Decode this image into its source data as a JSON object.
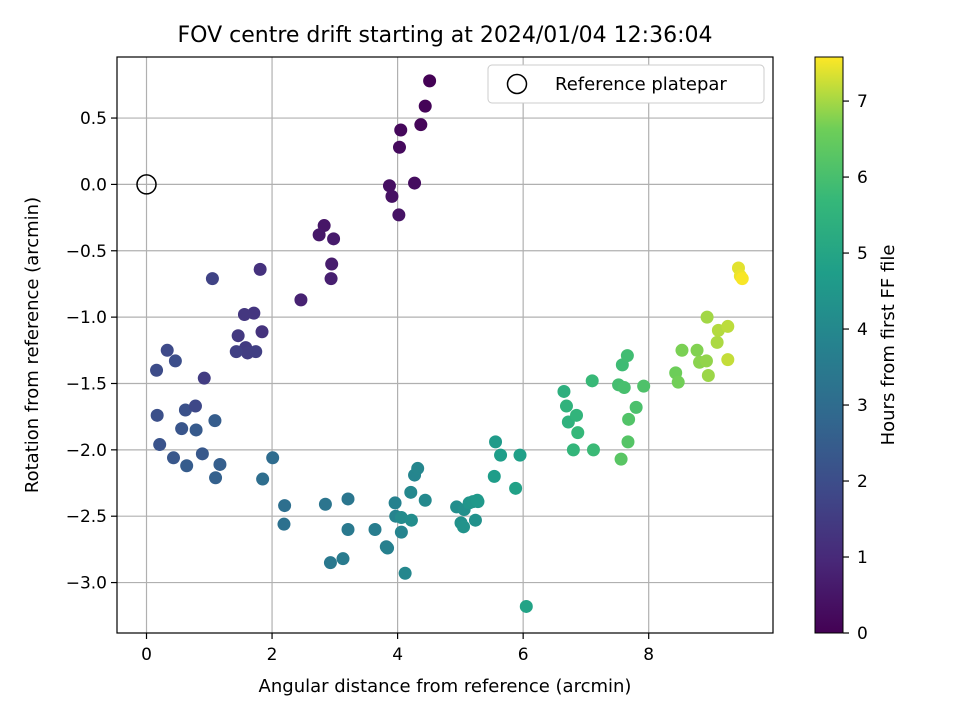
{
  "chart_data": {
    "type": "scatter",
    "title": "FOV centre drift starting at 2024/01/04 12:36:04",
    "xlabel": "Angular distance from reference (arcmin)",
    "ylabel": "Rotation from reference (arcmin)",
    "xlim": [
      -0.47,
      9.98
    ],
    "ylim": [
      -3.38,
      0.96
    ],
    "xticks": [
      0,
      2,
      4,
      6,
      8
    ],
    "yticks": [
      0.5,
      0.0,
      -0.5,
      -1.0,
      -1.5,
      -2.0,
      -2.5,
      -3.0
    ],
    "ytick_labels": [
      "0.5",
      "0.0",
      "−0.5",
      "−1.0",
      "−1.5",
      "−2.0",
      "−2.5",
      "−3.0"
    ],
    "grid": true,
    "legend": {
      "placement": "top-right",
      "entries": [
        "Reference platepar"
      ]
    },
    "reference_point": {
      "x": 0.0,
      "y": 0.0,
      "label": "Reference platepar",
      "marker": "open-circle"
    },
    "colorbar": {
      "label": "Hours from first FF file",
      "colormap": "viridis",
      "range": [
        0,
        7.58
      ],
      "ticks": [
        0,
        1,
        2,
        3,
        4,
        5,
        6,
        7
      ]
    },
    "series": [
      {
        "name": "",
        "x": [
          4.51,
          4.44,
          4.37,
          4.05,
          4.03,
          4.27,
          3.87,
          3.91,
          4.02,
          2.83,
          2.75,
          2.98,
          2.95,
          2.94,
          2.46,
          1.81,
          1.84,
          1.71,
          1.56,
          1.46,
          1.58,
          1.61,
          1.74,
          1.43,
          1.05,
          0.33,
          0.16,
          0.46,
          0.92,
          0.17,
          0.62,
          0.21,
          0.56,
          0.78,
          0.43,
          0.89,
          0.79,
          0.64,
          1.09,
          1.17,
          1.1,
          2.01,
          1.85,
          2.2,
          2.19,
          2.85,
          3.21,
          2.93,
          3.21,
          3.13,
          3.64,
          3.82,
          3.84,
          3.96,
          3.97,
          4.27,
          4.32,
          4.21,
          4.44,
          4.06,
          4.22,
          4.06,
          4.12,
          4.94,
          5.06,
          5.01,
          5.05,
          5.14,
          5.2,
          5.28,
          5.27,
          5.24,
          5.56,
          5.54,
          5.64,
          5.95,
          5.88,
          6.05,
          6.65,
          6.72,
          6.69,
          6.85,
          6.8,
          6.87,
          7.1,
          7.12,
          7.58,
          7.66,
          7.52,
          7.61,
          7.8,
          7.92,
          7.68,
          7.67,
          7.56,
          8.43,
          8.47,
          8.53,
          8.77,
          8.81,
          8.92,
          8.95,
          8.93,
          9.09,
          9.11,
          9.26,
          9.26,
          9.43,
          9.46,
          9.49
        ],
        "y": [
          0.78,
          0.59,
          0.45,
          0.41,
          0.28,
          0.01,
          -0.01,
          -0.09,
          -0.23,
          -0.31,
          -0.38,
          -0.41,
          -0.6,
          -0.71,
          -0.87,
          -0.64,
          -1.11,
          -0.97,
          -0.98,
          -1.14,
          -1.23,
          -1.27,
          -1.26,
          -1.26,
          -0.71,
          -1.25,
          -1.4,
          -1.33,
          -1.46,
          -1.74,
          -1.7,
          -1.96,
          -1.84,
          -1.67,
          -2.06,
          -2.03,
          -1.85,
          -2.12,
          -1.78,
          -2.11,
          -2.21,
          -2.06,
          -2.22,
          -2.42,
          -2.56,
          -2.41,
          -2.37,
          -2.85,
          -2.6,
          -2.82,
          -2.6,
          -2.73,
          -2.74,
          -2.4,
          -2.5,
          -2.19,
          -2.14,
          -2.32,
          -2.38,
          -2.51,
          -2.53,
          -2.62,
          -2.93,
          -2.43,
          -2.45,
          -2.55,
          -2.58,
          -2.4,
          -2.39,
          -2.39,
          -2.38,
          -2.53,
          -1.94,
          -2.2,
          -2.04,
          -2.04,
          -2.29,
          -3.18,
          -1.56,
          -1.79,
          -1.67,
          -1.74,
          -2.0,
          -1.87,
          -1.48,
          -2.0,
          -1.36,
          -1.29,
          -1.51,
          -1.53,
          -1.68,
          -1.52,
          -1.77,
          -1.94,
          -2.07,
          -1.42,
          -1.49,
          -1.25,
          -1.25,
          -1.34,
          -1.33,
          -1.44,
          -1.0,
          -1.19,
          -1.1,
          -1.07,
          -1.32,
          -0.63,
          -0.69,
          -0.71
        ],
        "hours": [
          0.02,
          0.07,
          0.12,
          0.18,
          0.23,
          0.28,
          0.34,
          0.39,
          0.44,
          0.51,
          0.56,
          0.62,
          0.67,
          0.73,
          0.79,
          1.2,
          1.25,
          1.31,
          1.36,
          1.41,
          1.47,
          1.52,
          1.58,
          1.63,
          1.69,
          1.9,
          1.96,
          2.01,
          1.5,
          2.07,
          2.12,
          2.18,
          2.23,
          1.85,
          2.29,
          2.34,
          2.4,
          2.45,
          2.51,
          2.56,
          2.62,
          3.0,
          3.05,
          3.11,
          3.16,
          3.3,
          3.35,
          3.41,
          3.46,
          3.52,
          3.6,
          3.66,
          3.71,
          3.77,
          3.82,
          3.88,
          3.93,
          3.99,
          4.04,
          4.1,
          4.15,
          3.85,
          3.95,
          4.2,
          4.25,
          4.31,
          4.36,
          4.42,
          4.47,
          4.53,
          4.58,
          4.3,
          4.64,
          4.69,
          4.75,
          4.8,
          4.86,
          4.91,
          5.4,
          5.45,
          5.51,
          5.56,
          5.62,
          5.67,
          5.73,
          5.78,
          5.84,
          5.89,
          5.95,
          6.0,
          6.06,
          6.11,
          6.17,
          6.22,
          6.28,
          6.6,
          6.65,
          6.71,
          6.76,
          6.82,
          6.87,
          6.93,
          6.98,
          7.04,
          7.09,
          7.15,
          7.2,
          7.4,
          7.47,
          7.55
        ]
      }
    ]
  }
}
